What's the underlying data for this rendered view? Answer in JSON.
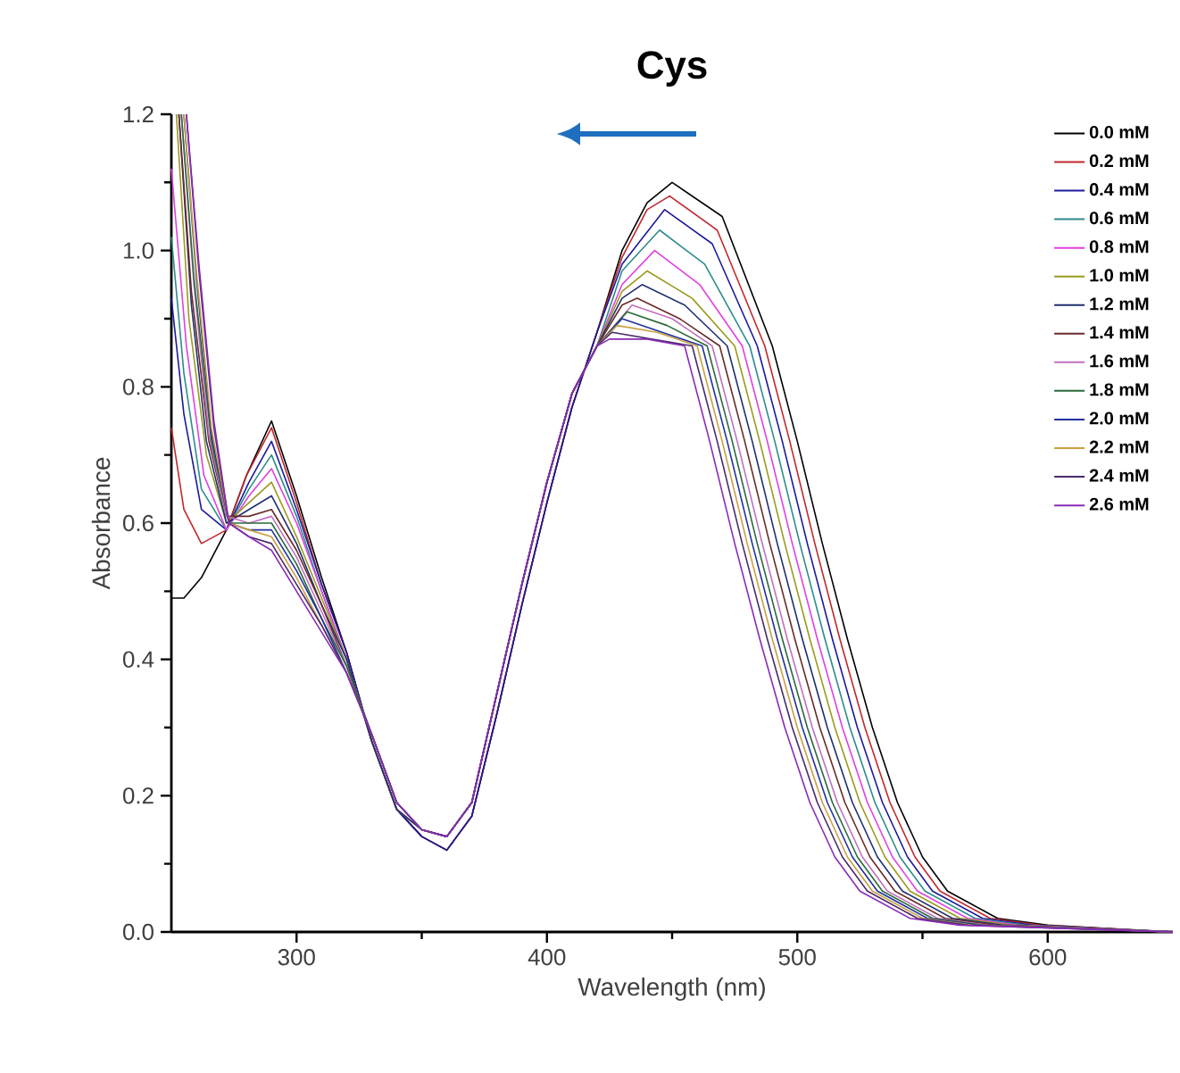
{
  "chart_data": {
    "type": "line",
    "title": "Cys",
    "xlabel": "Wavelength (nm)",
    "ylabel": "Absorbance",
    "xlim": [
      250,
      650
    ],
    "ylim": [
      0,
      1.2
    ],
    "xticks": [
      300,
      400,
      500,
      600
    ],
    "yticks": [
      {
        "value": 0,
        "label": "0.0"
      },
      {
        "value": 0.2,
        "label": "0.2"
      },
      {
        "value": 0.4,
        "label": "0.4"
      },
      {
        "value": 0.6,
        "label": "0.6"
      },
      {
        "value": 0.8,
        "label": "0.8"
      },
      {
        "value": 1.0,
        "label": "1.0"
      },
      {
        "value": 1.2,
        "label": "1.2"
      }
    ],
    "legend": "top right",
    "series": [
      {
        "name": "0.0 mM",
        "color": "#000000",
        "x": [
          250,
          255,
          262,
          272,
          280,
          290,
          300,
          310,
          320,
          330,
          340,
          350,
          360,
          370,
          380,
          390,
          400,
          410,
          420,
          430,
          440,
          450,
          470,
          490,
          500,
          510,
          520,
          530,
          540,
          550,
          560,
          580,
          600,
          650
        ],
        "values": [
          0.49,
          0.49,
          0.52,
          0.59,
          0.67,
          0.75,
          0.64,
          0.52,
          0.41,
          0.28,
          0.18,
          0.14,
          0.12,
          0.17,
          0.32,
          0.48,
          0.63,
          0.77,
          0.88,
          1.0,
          1.07,
          1.1,
          1.05,
          0.86,
          0.72,
          0.57,
          0.43,
          0.3,
          0.19,
          0.11,
          0.06,
          0.02,
          0.01,
          0
        ]
      },
      {
        "name": "0.2 mM",
        "color": "#c0282d",
        "x": [
          250,
          255,
          262,
          272,
          280,
          290,
          300,
          310,
          320,
          330,
          340,
          350,
          360,
          370,
          380,
          390,
          400,
          410,
          420,
          430,
          440,
          449,
          468,
          487,
          497,
          507,
          517,
          527,
          537,
          547,
          557,
          577,
          597,
          650
        ],
        "values": [
          0.74,
          0.62,
          0.57,
          0.59,
          0.67,
          0.74,
          0.63,
          0.51,
          0.41,
          0.28,
          0.18,
          0.14,
          0.12,
          0.17,
          0.32,
          0.48,
          0.63,
          0.77,
          0.88,
          0.99,
          1.06,
          1.08,
          1.03,
          0.86,
          0.72,
          0.57,
          0.43,
          0.3,
          0.19,
          0.11,
          0.06,
          0.02,
          0.01,
          0
        ]
      },
      {
        "name": "0.4 mM",
        "color": "#1a1a9c",
        "x": [
          250,
          255,
          262,
          272,
          281,
          290,
          300,
          310,
          320,
          330,
          340,
          350,
          360,
          370,
          380,
          390,
          400,
          410,
          420,
          430,
          447,
          466,
          484,
          494,
          504,
          514,
          524,
          534,
          544,
          554,
          574,
          594,
          650
        ],
        "values": [
          0.93,
          0.76,
          0.62,
          0.59,
          0.66,
          0.72,
          0.62,
          0.51,
          0.41,
          0.28,
          0.18,
          0.14,
          0.12,
          0.17,
          0.32,
          0.48,
          0.63,
          0.77,
          0.88,
          0.98,
          1.06,
          1.01,
          0.86,
          0.72,
          0.57,
          0.43,
          0.3,
          0.19,
          0.11,
          0.06,
          0.02,
          0.01,
          0
        ]
      },
      {
        "name": "0.6 mM",
        "color": "#2e8b8b",
        "x": [
          250,
          255,
          262,
          272,
          281,
          290,
          300,
          310,
          320,
          330,
          340,
          350,
          360,
          370,
          380,
          390,
          400,
          410,
          420,
          430,
          445,
          463,
          481,
          491,
          501,
          511,
          521,
          531,
          541,
          551,
          571,
          591,
          650
        ],
        "values": [
          1.02,
          0.82,
          0.65,
          0.59,
          0.65,
          0.7,
          0.61,
          0.5,
          0.4,
          0.28,
          0.18,
          0.15,
          0.14,
          0.19,
          0.35,
          0.51,
          0.66,
          0.79,
          0.86,
          0.97,
          1.03,
          0.98,
          0.86,
          0.72,
          0.57,
          0.43,
          0.3,
          0.19,
          0.11,
          0.06,
          0.02,
          0.01,
          0
        ]
      },
      {
        "name": "0.8 mM",
        "color": "#e040e0",
        "x": [
          250,
          256,
          263,
          272,
          281,
          290,
          300,
          310,
          320,
          330,
          340,
          350,
          360,
          370,
          380,
          390,
          400,
          410,
          420,
          430,
          443,
          461,
          478,
          488,
          498,
          508,
          518,
          528,
          538,
          548,
          568,
          588,
          650
        ],
        "values": [
          1.12,
          0.86,
          0.67,
          0.59,
          0.64,
          0.68,
          0.6,
          0.5,
          0.4,
          0.28,
          0.18,
          0.15,
          0.14,
          0.19,
          0.35,
          0.51,
          0.66,
          0.79,
          0.86,
          0.95,
          1.0,
          0.95,
          0.86,
          0.72,
          0.57,
          0.43,
          0.3,
          0.19,
          0.11,
          0.06,
          0.02,
          0.01,
          0
        ]
      },
      {
        "name": "1.0 mM",
        "color": "#9a9a20",
        "x": [
          252,
          257,
          264,
          272,
          281,
          290,
          300,
          310,
          320,
          330,
          340,
          350,
          360,
          370,
          380,
          390,
          400,
          410,
          420,
          430,
          440,
          458,
          475,
          485,
          495,
          505,
          515,
          525,
          535,
          545,
          565,
          585,
          650
        ],
        "values": [
          1.2,
          0.9,
          0.7,
          0.6,
          0.63,
          0.66,
          0.58,
          0.49,
          0.4,
          0.28,
          0.18,
          0.15,
          0.14,
          0.19,
          0.35,
          0.51,
          0.66,
          0.79,
          0.86,
          0.94,
          0.97,
          0.93,
          0.86,
          0.72,
          0.57,
          0.43,
          0.3,
          0.19,
          0.11,
          0.06,
          0.02,
          0.01,
          0
        ]
      },
      {
        "name": "1.2 mM",
        "color": "#1f2f6f",
        "x": [
          253,
          258,
          264,
          272,
          281,
          290,
          300,
          310,
          320,
          330,
          340,
          350,
          360,
          370,
          380,
          390,
          400,
          410,
          420,
          430,
          438,
          455,
          472,
          482,
          492,
          502,
          512,
          522,
          532,
          542,
          562,
          582,
          650
        ],
        "values": [
          1.2,
          0.92,
          0.72,
          0.6,
          0.62,
          0.64,
          0.57,
          0.48,
          0.4,
          0.28,
          0.18,
          0.15,
          0.14,
          0.19,
          0.35,
          0.51,
          0.66,
          0.79,
          0.86,
          0.93,
          0.95,
          0.92,
          0.86,
          0.72,
          0.57,
          0.43,
          0.3,
          0.19,
          0.11,
          0.06,
          0.02,
          0.01,
          0
        ]
      },
      {
        "name": "1.4 mM",
        "color": "#6b2a2a",
        "x": [
          253,
          258,
          265,
          272,
          281,
          290,
          300,
          310,
          320,
          330,
          340,
          350,
          360,
          370,
          380,
          390,
          400,
          410,
          420,
          430,
          436,
          453,
          469,
          479,
          489,
          499,
          509,
          519,
          529,
          539,
          559,
          579,
          650
        ],
        "values": [
          1.2,
          0.94,
          0.72,
          0.61,
          0.61,
          0.62,
          0.56,
          0.48,
          0.39,
          0.29,
          0.19,
          0.15,
          0.14,
          0.19,
          0.35,
          0.51,
          0.66,
          0.79,
          0.86,
          0.92,
          0.93,
          0.9,
          0.86,
          0.72,
          0.57,
          0.43,
          0.3,
          0.19,
          0.11,
          0.06,
          0.02,
          0.01,
          0
        ]
      },
      {
        "name": "1.6 mM",
        "color": "#c070c0",
        "x": [
          254,
          259,
          265,
          272,
          281,
          290,
          300,
          310,
          320,
          330,
          340,
          350,
          360,
          370,
          380,
          390,
          400,
          410,
          420,
          434,
          450,
          466,
          476,
          486,
          496,
          506,
          516,
          526,
          536,
          556,
          576,
          650
        ],
        "values": [
          1.2,
          0.95,
          0.73,
          0.61,
          0.6,
          0.61,
          0.55,
          0.47,
          0.39,
          0.29,
          0.19,
          0.15,
          0.14,
          0.19,
          0.35,
          0.51,
          0.66,
          0.79,
          0.86,
          0.92,
          0.9,
          0.86,
          0.72,
          0.57,
          0.43,
          0.3,
          0.19,
          0.11,
          0.06,
          0.02,
          0.01,
          0
        ]
      },
      {
        "name": "1.8 mM",
        "color": "#2a6a3a",
        "x": [
          254,
          259,
          266,
          273,
          281,
          290,
          300,
          310,
          320,
          330,
          340,
          350,
          360,
          370,
          380,
          390,
          400,
          410,
          420,
          432,
          448,
          464,
          474,
          484,
          494,
          504,
          514,
          524,
          534,
          554,
          574,
          650
        ],
        "values": [
          1.2,
          0.96,
          0.72,
          0.6,
          0.6,
          0.6,
          0.54,
          0.46,
          0.39,
          0.29,
          0.19,
          0.15,
          0.14,
          0.19,
          0.35,
          0.51,
          0.66,
          0.79,
          0.86,
          0.91,
          0.89,
          0.86,
          0.72,
          0.57,
          0.43,
          0.3,
          0.19,
          0.11,
          0.06,
          0.02,
          0.01,
          0
        ]
      },
      {
        "name": "2.0 mM",
        "color": "#2030a0",
        "x": [
          255,
          260,
          266,
          273,
          281,
          290,
          300,
          310,
          320,
          330,
          340,
          350,
          360,
          370,
          380,
          390,
          400,
          410,
          420,
          430,
          446,
          462,
          472,
          482,
          492,
          502,
          512,
          522,
          532,
          552,
          572,
          650
        ],
        "values": [
          1.2,
          0.96,
          0.73,
          0.6,
          0.59,
          0.59,
          0.53,
          0.46,
          0.38,
          0.29,
          0.19,
          0.15,
          0.14,
          0.19,
          0.35,
          0.51,
          0.66,
          0.79,
          0.86,
          0.9,
          0.88,
          0.86,
          0.72,
          0.57,
          0.43,
          0.3,
          0.19,
          0.11,
          0.06,
          0.02,
          0.01,
          0
        ]
      },
      {
        "name": "2.2 mM",
        "color": "#c8a040",
        "x": [
          255,
          260,
          266,
          273,
          281,
          290,
          300,
          310,
          320,
          330,
          340,
          350,
          360,
          370,
          380,
          390,
          400,
          410,
          420,
          428,
          444,
          460,
          470,
          480,
          490,
          500,
          510,
          520,
          530,
          550,
          570,
          650
        ],
        "values": [
          1.2,
          0.97,
          0.74,
          0.6,
          0.59,
          0.58,
          0.52,
          0.45,
          0.38,
          0.29,
          0.19,
          0.15,
          0.14,
          0.19,
          0.35,
          0.51,
          0.66,
          0.79,
          0.86,
          0.89,
          0.88,
          0.86,
          0.72,
          0.57,
          0.43,
          0.3,
          0.19,
          0.11,
          0.06,
          0.02,
          0.01,
          0
        ]
      },
      {
        "name": "2.4 mM",
        "color": "#4a2a6a",
        "x": [
          256,
          261,
          267,
          273,
          281,
          290,
          300,
          310,
          320,
          330,
          340,
          350,
          360,
          370,
          380,
          390,
          400,
          410,
          420,
          426,
          442,
          458,
          468,
          478,
          488,
          498,
          508,
          518,
          528,
          548,
          568,
          650
        ],
        "values": [
          1.2,
          0.97,
          0.74,
          0.6,
          0.58,
          0.57,
          0.51,
          0.45,
          0.38,
          0.29,
          0.19,
          0.15,
          0.14,
          0.19,
          0.35,
          0.51,
          0.66,
          0.79,
          0.86,
          0.88,
          0.87,
          0.86,
          0.72,
          0.57,
          0.43,
          0.3,
          0.19,
          0.11,
          0.06,
          0.02,
          0.01,
          0
        ]
      },
      {
        "name": "2.6 mM",
        "color": "#8a2ab8",
        "x": [
          256,
          261,
          267,
          273,
          281,
          290,
          300,
          310,
          320,
          330,
          340,
          350,
          360,
          370,
          380,
          390,
          400,
          410,
          420,
          425,
          440,
          455,
          465,
          475,
          485,
          495,
          505,
          515,
          525,
          545,
          565,
          650
        ],
        "values": [
          1.2,
          0.98,
          0.75,
          0.6,
          0.58,
          0.56,
          0.5,
          0.44,
          0.38,
          0.29,
          0.19,
          0.15,
          0.14,
          0.19,
          0.35,
          0.51,
          0.66,
          0.79,
          0.86,
          0.87,
          0.87,
          0.86,
          0.72,
          0.57,
          0.43,
          0.3,
          0.19,
          0.11,
          0.06,
          0.02,
          0.01,
          0
        ]
      }
    ]
  }
}
